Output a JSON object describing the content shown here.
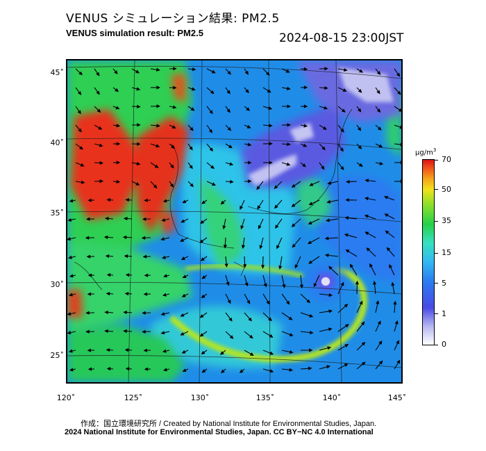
{
  "header": {
    "title_jp": "VENUS シミュレーション結果: PM2.5",
    "title_en": "VENUS simulation result: PM2.5",
    "timestamp": "2024-08-15 23:00JST"
  },
  "map": {
    "variable": "PM2.5",
    "lat_labels": [
      "45˚",
      "40˚",
      "35˚",
      "30˚",
      "25˚"
    ],
    "lon_labels": [
      "120˚",
      "125˚",
      "130˚",
      "135˚",
      "140˚",
      "145˚"
    ],
    "features": [
      "high PM2.5 over northeastern China and Korea",
      "typhoon vortex south of Japan"
    ]
  },
  "colorbar": {
    "unit": "μg/m",
    "unit_sup": "3",
    "labels": [
      "70",
      "50",
      "35",
      "15",
      "5",
      "1",
      "0"
    ]
  },
  "footer": {
    "credit": "作成：国立環境研究所 / Created by National Institute for Environmental Studies, Japan.",
    "copyright": "2024 National Institute for Environmental Studies, Japan. CC BY−NC 4.0 International"
  },
  "colors": {
    "high": "#d81414",
    "mid": "#25d04a",
    "low": "#2a7bf0",
    "very_low": "#b6b6f2"
  }
}
